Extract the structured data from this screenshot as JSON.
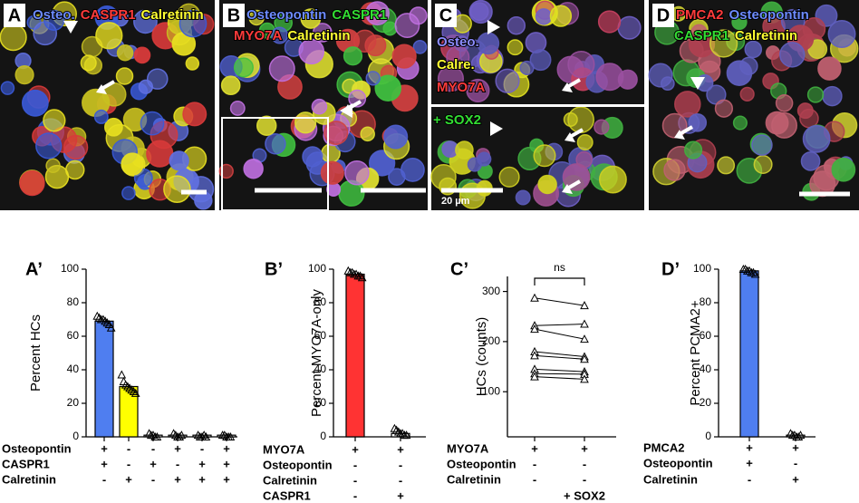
{
  "image_panels": [
    {
      "letter": "A",
      "labels": [
        {
          "text": "Osteo.",
          "color": "#6d8bff"
        },
        {
          "text": "CASPR1",
          "color": "#ff3b3b"
        },
        {
          "text": "Calretinin",
          "color": "#ffff33"
        }
      ]
    },
    {
      "letter": "B",
      "labels": [
        {
          "text": "Osteopontin",
          "color": "#6d8bff"
        },
        {
          "text": "CASPR1",
          "color": "#33dd33"
        },
        {
          "text": "MYO7A",
          "color": "#ff3b3b"
        },
        {
          "text": "Calretinin",
          "color": "#ffff33"
        }
      ]
    },
    {
      "letter": "C",
      "labels": [
        {
          "text": "Osteo.",
          "color": "#8c8cff"
        },
        {
          "text": "Calre.",
          "color": "#ffff33"
        },
        {
          "text": "MYO7A",
          "color": "#ff3b3b"
        }
      ]
    },
    {
      "labels": [
        {
          "text": "+ SOX2",
          "color": "#33dd33"
        }
      ],
      "scale_label": "20 µm"
    },
    {
      "letter": "D",
      "labels": [
        {
          "text": "PMCA2",
          "color": "#ff3b3b"
        },
        {
          "text": "Osteopontin",
          "color": "#6d8bff"
        },
        {
          "text": "CASPR1",
          "color": "#33dd33"
        },
        {
          "text": "Calretinin",
          "color": "#ffff33"
        }
      ]
    }
  ],
  "chart_data": [
    {
      "type": "bar",
      "panel": "A’",
      "ylabel": "Percent HCs",
      "ylim": [
        0,
        100
      ],
      "yticks": [
        0,
        20,
        40,
        60,
        80,
        100
      ],
      "values": [
        69,
        30,
        1,
        1,
        1,
        1
      ],
      "colors": [
        "#4f7ef0",
        "#ffff00",
        "#ffffff",
        "#ffffff",
        "#ffffff",
        "#ffffff"
      ],
      "points": [
        [
          72,
          71,
          70,
          70,
          69,
          68,
          67,
          65
        ],
        [
          37,
          33,
          31,
          30,
          29,
          28,
          27,
          26
        ],
        [
          2,
          1,
          1,
          0,
          0
        ],
        [
          2,
          1,
          0,
          0,
          1
        ],
        [
          1,
          0,
          0,
          1,
          0
        ],
        [
          1,
          1,
          0,
          0,
          0
        ]
      ],
      "conditions": [
        {
          "name": "Osteopontin",
          "signs": [
            "+",
            "-",
            "-",
            "+",
            "-",
            "+"
          ]
        },
        {
          "name": "CASPR1",
          "signs": [
            "+",
            "-",
            "+",
            "-",
            "+",
            "+"
          ]
        },
        {
          "name": "Calretinin",
          "signs": [
            "-",
            "+",
            "-",
            "+",
            "+",
            "+"
          ]
        }
      ]
    },
    {
      "type": "bar",
      "panel": "B’",
      "ylabel": "Percent MYO7A-only",
      "ylim": [
        0,
        100
      ],
      "yticks": [
        0,
        20,
        40,
        60,
        80,
        100
      ],
      "values": [
        97,
        2
      ],
      "colors": [
        "#ff3333",
        "#ffffff"
      ],
      "points": [
        [
          99,
          98,
          98,
          97,
          97,
          96,
          96,
          95
        ],
        [
          5,
          4,
          3,
          2,
          2,
          1,
          1
        ]
      ],
      "conditions": [
        {
          "name": "MYO7A",
          "signs": [
            "+",
            "+"
          ]
        },
        {
          "name": "Osteopontin",
          "signs": [
            "-",
            "-"
          ]
        },
        {
          "name": "Calretinin",
          "signs": [
            "-",
            "-"
          ]
        },
        {
          "name": "CASPR1",
          "signs": [
            "-",
            "+"
          ]
        }
      ]
    },
    {
      "type": "paired",
      "panel": "C’",
      "ylabel": "HCs (counts)",
      "ylim": [
        10,
        330
      ],
      "yticks": [
        100,
        200,
        300
      ],
      "before": [
        287,
        232,
        225,
        180,
        172,
        145,
        136,
        130
      ],
      "after": [
        272,
        235,
        205,
        170,
        165,
        140,
        135,
        125
      ],
      "annotation": "ns",
      "conditions": [
        {
          "name": "MYO7A",
          "signs": [
            "+",
            "+"
          ]
        },
        {
          "name": "Osteopontin",
          "signs": [
            "-",
            "-"
          ]
        },
        {
          "name": "Calretinin",
          "signs": [
            "-",
            "-"
          ]
        }
      ],
      "note": "+ SOX2"
    },
    {
      "type": "bar",
      "panel": "D’",
      "ylabel": "Percent PCMA2+",
      "ylim": [
        0,
        100
      ],
      "yticks": [
        0,
        20,
        40,
        60,
        80,
        100
      ],
      "values": [
        99,
        1
      ],
      "colors": [
        "#4f7ef0",
        "#ffffff"
      ],
      "points": [
        [
          100,
          100,
          99,
          99,
          98,
          98,
          97
        ],
        [
          2,
          1,
          1,
          0,
          0,
          1
        ]
      ],
      "conditions": [
        {
          "name": "PMCA2",
          "signs": [
            "+",
            "+"
          ]
        },
        {
          "name": "Osteopontin",
          "signs": [
            "+",
            "-"
          ]
        },
        {
          "name": "Calretinin",
          "signs": [
            "-",
            "+"
          ]
        }
      ]
    }
  ]
}
